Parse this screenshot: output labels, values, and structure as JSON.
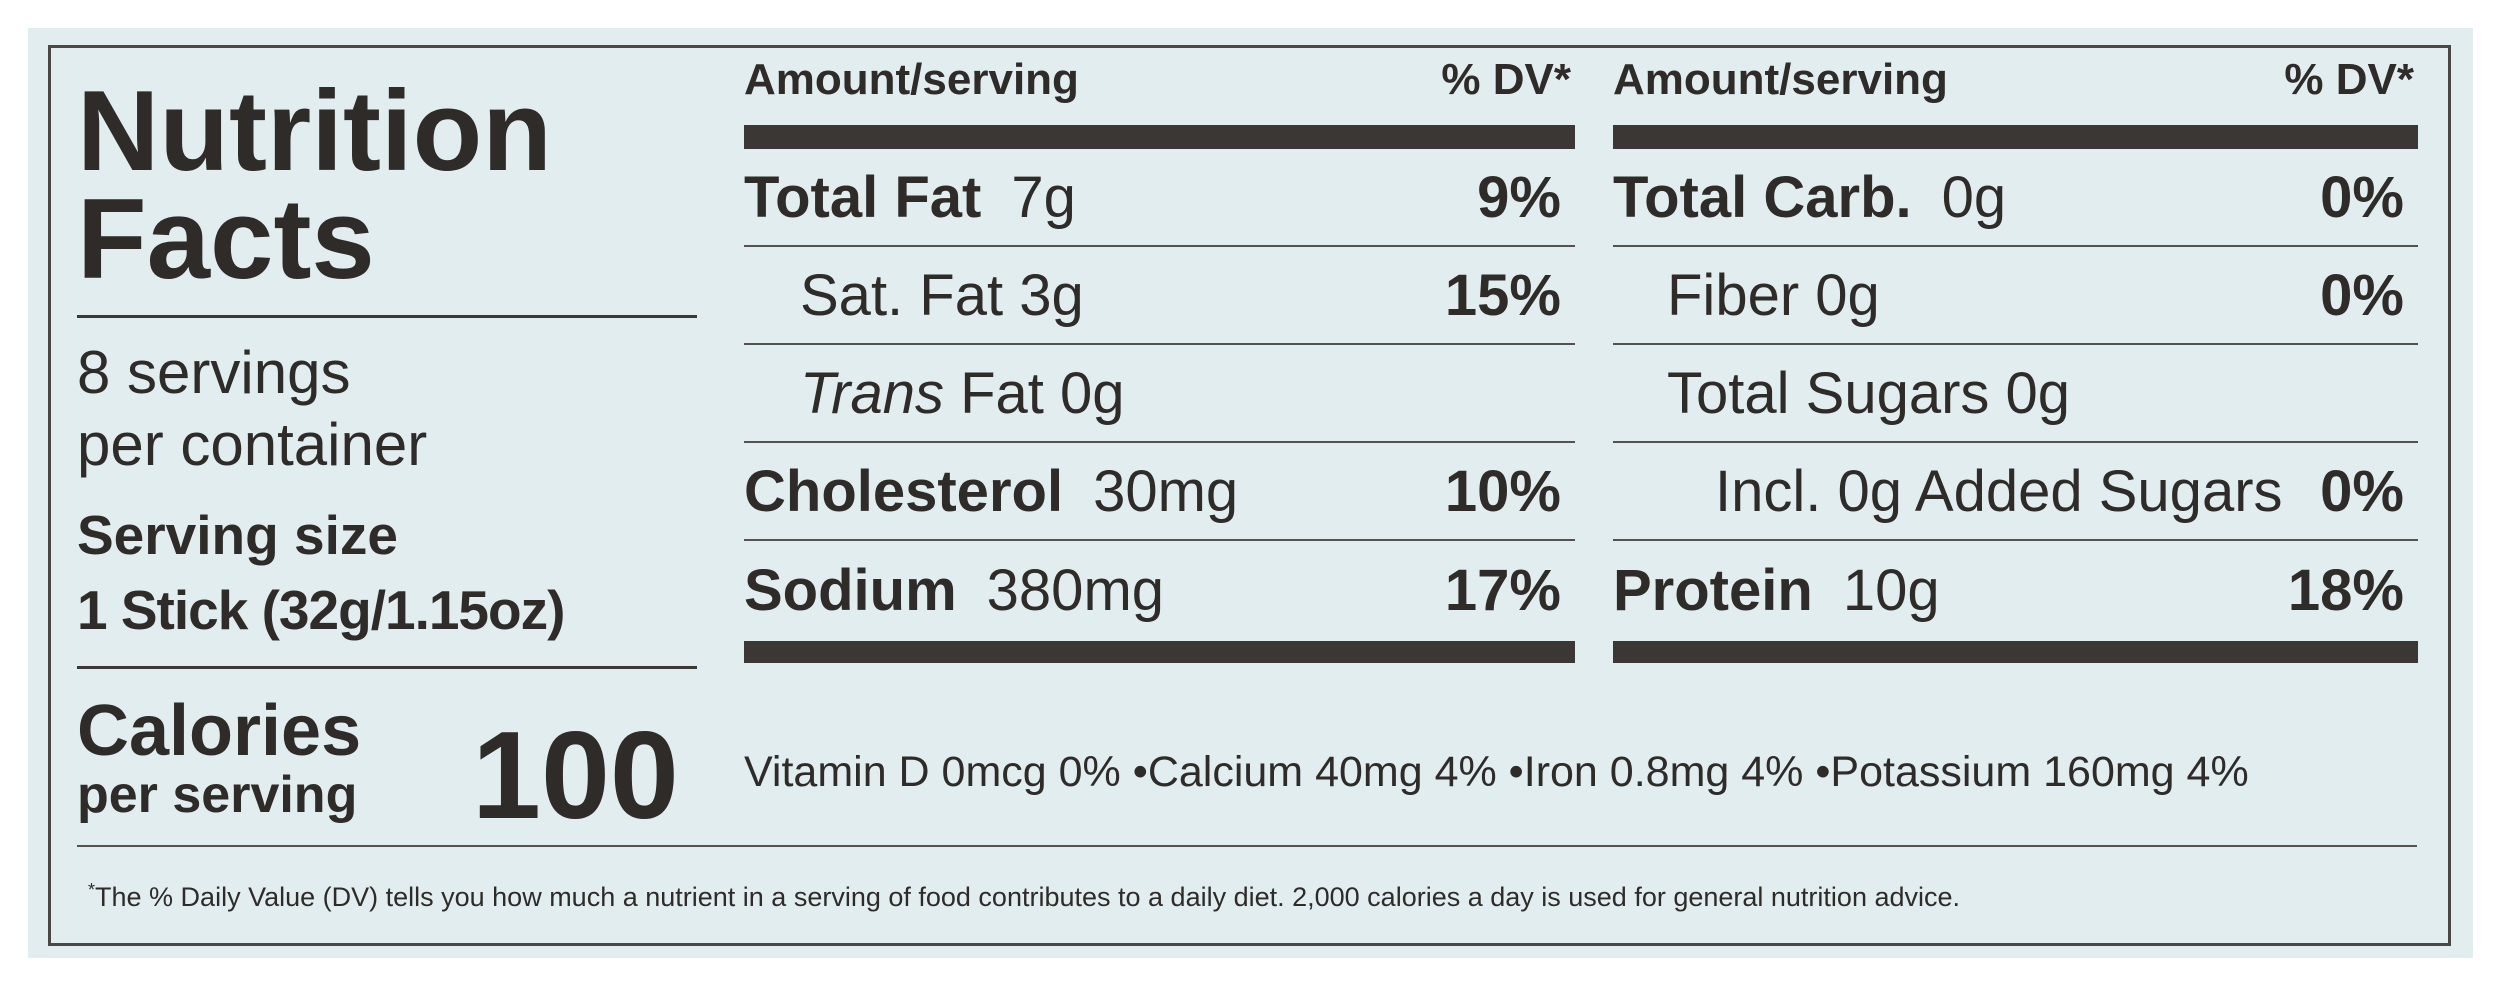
{
  "title_lines": [
    "Nutrition",
    "Facts"
  ],
  "servings": [
    "8 servings",
    "per container"
  ],
  "serving_size": {
    "label": "Serving size",
    "value": "1 Stick (32g/1.15oz)"
  },
  "calories": {
    "label": "Calories",
    "sublabel": "per serving",
    "value": 100
  },
  "columns": [
    {
      "header": {
        "amount": "Amount/serving",
        "dv": "% DV*"
      },
      "rows": [
        {
          "name": "Total Fat",
          "amount": "7g",
          "dv": "9%",
          "bold": true
        },
        {
          "name": "Sat. Fat",
          "amount": "3g",
          "dv": "15%",
          "bold": false
        },
        {
          "name_italic": "Trans",
          "name": "Fat",
          "amount": "0g",
          "bold": false
        },
        {
          "name": "Cholesterol",
          "amount": "30mg",
          "dv": "10%",
          "bold": true
        },
        {
          "name": "Sodium",
          "amount": "380mg",
          "dv": "17%",
          "bold": true
        }
      ]
    },
    {
      "header": {
        "amount": "Amount/serving",
        "dv": "% DV*"
      },
      "rows": [
        {
          "name": "Total Carb.",
          "amount": "0g",
          "dv": "0%",
          "bold": true
        },
        {
          "name": "Fiber",
          "amount": "0g",
          "dv": "0%",
          "bold": false
        },
        {
          "name": "Total Sugars",
          "amount": "0g",
          "bold": false
        },
        {
          "name": "Incl. 0g Added Sugars",
          "dv": "0%",
          "bold": false
        },
        {
          "name": "Protein",
          "amount": "10g",
          "dv": "18%",
          "bold": true
        }
      ]
    }
  ],
  "micronutrients": [
    "Vitamin D 0mcg 0%",
    "Calcium 40mg 4%",
    "Iron 0.8mg 4%",
    "Potassium 160mg 4%"
  ],
  "footnote_mark": "*",
  "footnote": "The % Daily Value (DV) tells you how much a nutrient in a serving of food contributes to a daily diet. 2,000 calories a day is used for general nutrition advice."
}
